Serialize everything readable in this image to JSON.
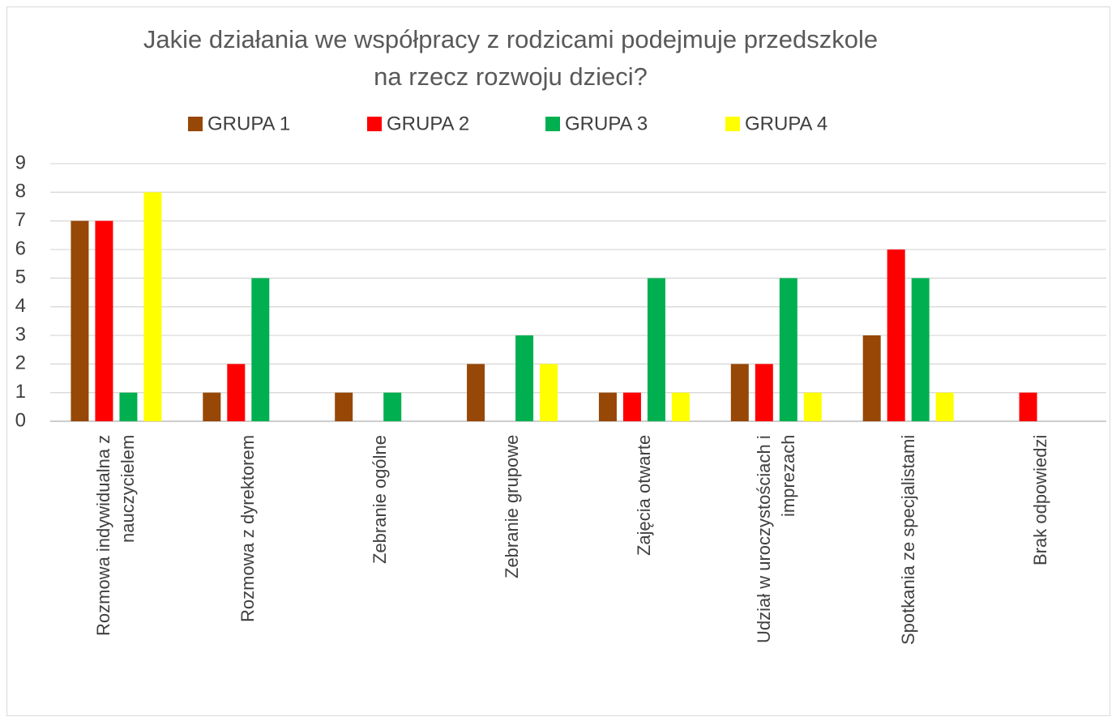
{
  "chart_data": {
    "type": "bar",
    "title": "Jakie działania we współpracy z rodzicami podejmuje przedszkole\nna rzecz rozwoju dzieci?",
    "categories": [
      "Rozmowa indywidualna z\nnauczycielem",
      "Rozmowa z dyrektorem",
      "Zebranie ogólne",
      "Zebranie grupowe",
      "Zajęcia otwarte",
      "Udział w uroczystościach i\nimprezach",
      "Spotkania ze specjalistami",
      "Brak odpowiedzi"
    ],
    "series": [
      {
        "name": "GRUPA 1",
        "color": "#974706",
        "values": [
          7,
          1,
          1,
          2,
          1,
          2,
          3,
          0
        ]
      },
      {
        "name": "GRUPA 2",
        "color": "#ff0000",
        "values": [
          7,
          2,
          0,
          0,
          1,
          2,
          6,
          1
        ]
      },
      {
        "name": "GRUPA 3",
        "color": "#00b050",
        "values": [
          1,
          5,
          1,
          3,
          5,
          5,
          5,
          0
        ]
      },
      {
        "name": "GRUPA 4",
        "color": "#ffff00",
        "values": [
          8,
          0,
          0,
          2,
          1,
          1,
          1,
          0
        ]
      }
    ],
    "ylim": [
      0,
      9
    ],
    "yticks": [
      0,
      1,
      2,
      3,
      4,
      5,
      6,
      7,
      8,
      9
    ],
    "grid": true,
    "legend": "top"
  }
}
